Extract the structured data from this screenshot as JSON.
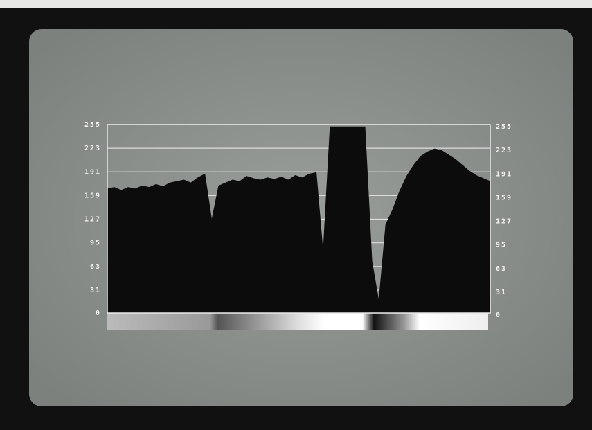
{
  "chart_data": {
    "type": "area",
    "categories": [
      null,
      null,
      null,
      null,
      null,
      null,
      null,
      null,
      null,
      null,
      null,
      null,
      null,
      null,
      null,
      null,
      null,
      null,
      null,
      null,
      null,
      null,
      null,
      null,
      null,
      null,
      null,
      null,
      null,
      null,
      null,
      null,
      null,
      null,
      null,
      null,
      null,
      null,
      null,
      null,
      null,
      null,
      null,
      null,
      null,
      null,
      null,
      null,
      null,
      null,
      null,
      null,
      null,
      null,
      null,
      null
    ],
    "values": [
      168,
      170,
      166,
      170,
      168,
      172,
      170,
      174,
      171,
      176,
      178,
      180,
      176,
      183,
      188,
      125,
      172,
      176,
      180,
      178,
      185,
      182,
      180,
      183,
      181,
      184,
      180,
      186,
      183,
      188,
      190,
      80,
      252,
      252,
      252,
      252,
      252,
      252,
      70,
      15,
      120,
      140,
      165,
      185,
      200,
      212,
      218,
      222,
      220,
      214,
      208,
      200,
      192,
      186,
      182,
      178
    ],
    "color": "#0c0c0c",
    "ylim": [
      0,
      255
    ],
    "yticks": [
      0,
      31,
      63,
      95,
      127,
      159,
      191,
      223,
      255
    ],
    "grid": true
  }
}
